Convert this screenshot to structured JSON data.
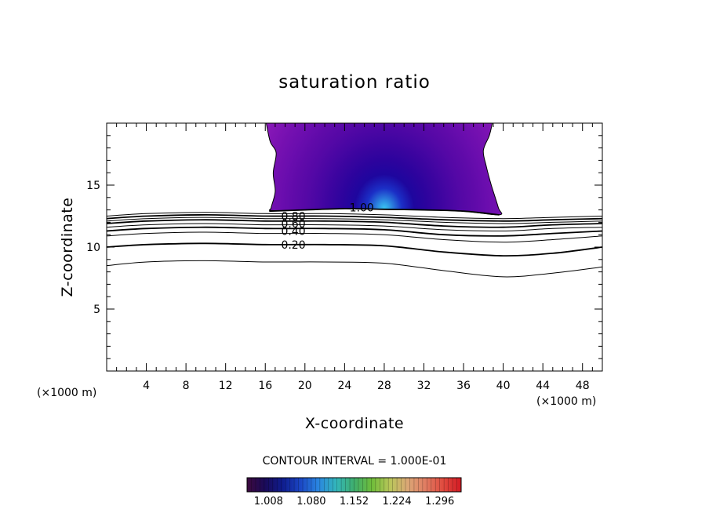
{
  "chart_data": {
    "type": "contour",
    "title": "saturation ratio",
    "xlabel": "X-coordinate",
    "ylabel": "Z-coordinate",
    "x_unit_label": "(×1000 m)",
    "y_unit_label": "(×1000 m)",
    "xlim": [
      0,
      50
    ],
    "ylim": [
      0,
      20
    ],
    "x_ticks": [
      4,
      8,
      12,
      16,
      20,
      24,
      28,
      32,
      36,
      40,
      44,
      48
    ],
    "y_ticks": [
      5,
      10,
      15
    ],
    "contour_interval_text": "CONTOUR INTERVAL = 1.000E-01",
    "contour_lines": [
      {
        "level": 0.1,
        "label": "",
        "points": [
          [
            0,
            8.5
          ],
          [
            4,
            8.8
          ],
          [
            10,
            8.9
          ],
          [
            16,
            8.8
          ],
          [
            22,
            8.8
          ],
          [
            28,
            8.7
          ],
          [
            34,
            8.1
          ],
          [
            40,
            7.6
          ],
          [
            45,
            7.9
          ],
          [
            50,
            8.4
          ]
        ]
      },
      {
        "level": 0.2,
        "label": "0.20",
        "points": [
          [
            0,
            10.0
          ],
          [
            4,
            10.2
          ],
          [
            10,
            10.3
          ],
          [
            16,
            10.2
          ],
          [
            22,
            10.2
          ],
          [
            28,
            10.1
          ],
          [
            34,
            9.6
          ],
          [
            40,
            9.3
          ],
          [
            45,
            9.5
          ],
          [
            50,
            10.0
          ]
        ]
      },
      {
        "level": 0.3,
        "label": "",
        "points": [
          [
            0,
            10.9
          ],
          [
            4,
            11.1
          ],
          [
            10,
            11.2
          ],
          [
            16,
            11.1
          ],
          [
            22,
            11.1
          ],
          [
            28,
            11.0
          ],
          [
            34,
            10.6
          ],
          [
            40,
            10.4
          ],
          [
            45,
            10.6
          ],
          [
            50,
            10.9
          ]
        ]
      },
      {
        "level": 0.4,
        "label": "0.40",
        "points": [
          [
            0,
            11.3
          ],
          [
            4,
            11.5
          ],
          [
            10,
            11.6
          ],
          [
            16,
            11.5
          ],
          [
            22,
            11.5
          ],
          [
            28,
            11.4
          ],
          [
            34,
            11.0
          ],
          [
            40,
            10.9
          ],
          [
            45,
            11.1
          ],
          [
            50,
            11.3
          ]
        ]
      },
      {
        "level": 0.5,
        "label": "",
        "points": [
          [
            0,
            11.6
          ],
          [
            4,
            11.8
          ],
          [
            10,
            11.9
          ],
          [
            16,
            11.8
          ],
          [
            22,
            11.8
          ],
          [
            28,
            11.7
          ],
          [
            34,
            11.4
          ],
          [
            40,
            11.3
          ],
          [
            45,
            11.5
          ],
          [
            50,
            11.6
          ]
        ]
      },
      {
        "level": 0.6,
        "label": "0.60",
        "points": [
          [
            0,
            11.9
          ],
          [
            4,
            12.1
          ],
          [
            10,
            12.2
          ],
          [
            16,
            12.1
          ],
          [
            22,
            12.1
          ],
          [
            28,
            12.0
          ],
          [
            34,
            11.7
          ],
          [
            40,
            11.6
          ],
          [
            45,
            11.8
          ],
          [
            50,
            11.9
          ]
        ]
      },
      {
        "level": 0.7,
        "label": "",
        "points": [
          [
            0,
            12.1
          ],
          [
            4,
            12.3
          ],
          [
            10,
            12.4
          ],
          [
            16,
            12.3
          ],
          [
            22,
            12.3
          ],
          [
            28,
            12.2
          ],
          [
            34,
            12.0
          ],
          [
            40,
            11.9
          ],
          [
            45,
            12.0
          ],
          [
            50,
            12.1
          ]
        ]
      },
      {
        "level": 0.8,
        "label": "0.80",
        "points": [
          [
            0,
            12.3
          ],
          [
            4,
            12.5
          ],
          [
            10,
            12.6
          ],
          [
            16,
            12.5
          ],
          [
            22,
            12.5
          ],
          [
            28,
            12.4
          ],
          [
            34,
            12.2
          ],
          [
            40,
            12.1
          ],
          [
            45,
            12.2
          ],
          [
            50,
            12.3
          ]
        ]
      },
      {
        "level": 0.9,
        "label": "",
        "points": [
          [
            0,
            12.5
          ],
          [
            4,
            12.7
          ],
          [
            10,
            12.8
          ],
          [
            16,
            12.7
          ],
          [
            22,
            12.7
          ],
          [
            28,
            12.6
          ],
          [
            34,
            12.4
          ],
          [
            40,
            12.3
          ],
          [
            45,
            12.4
          ],
          [
            50,
            12.5
          ]
        ]
      },
      {
        "level": 1.0,
        "label": "1.00",
        "points": [
          [
            16.4,
            12.9
          ],
          [
            20,
            13.0
          ],
          [
            24,
            13.1
          ],
          [
            28,
            13.05
          ],
          [
            32,
            13.0
          ],
          [
            36,
            12.9
          ],
          [
            39.6,
            12.6
          ]
        ]
      }
    ],
    "contour_labels": [
      {
        "text": "0.20",
        "x": 17.6,
        "y": 10.2
      },
      {
        "text": "0.40",
        "x": 17.6,
        "y": 11.3
      },
      {
        "text": "0.60",
        "x": 17.6,
        "y": 11.9
      },
      {
        "text": "0.80",
        "x": 17.6,
        "y": 12.5
      },
      {
        "text": "1.00",
        "x": 24.5,
        "y": 13.2
      }
    ],
    "filled_region": {
      "min_level": 1.0,
      "outline": [
        [
          16.1,
          20
        ],
        [
          16.5,
          18.5
        ],
        [
          17.1,
          17.6
        ],
        [
          16.8,
          16.0
        ],
        [
          17.0,
          14.5
        ],
        [
          16.6,
          13.2
        ],
        [
          16.7,
          12.95
        ],
        [
          20,
          13.0
        ],
        [
          24,
          13.1
        ],
        [
          28,
          13.05
        ],
        [
          32,
          13.0
        ],
        [
          36,
          12.9
        ],
        [
          39.6,
          12.6
        ],
        [
          39.5,
          13.2
        ],
        [
          38.8,
          15.0
        ],
        [
          38.3,
          16.5
        ],
        [
          38.0,
          17.8
        ],
        [
          38.6,
          19.0
        ],
        [
          38.9,
          20
        ]
      ],
      "shading_center": [
        28,
        13.1
      ],
      "colors": [
        "#8a19b8",
        "#7f14b4",
        "#7410b0",
        "#6a0dae",
        "#5f0aa9",
        "#5508a6",
        "#4806a3",
        "#3a049f",
        "#2c039d",
        "#1e069e",
        "#1b2fc6",
        "#3ac8f2"
      ]
    },
    "colorbar": {
      "ticks": [
        "1.008",
        "1.080",
        "1.152",
        "1.224",
        "1.296"
      ],
      "min": 0.972,
      "max": 1.332,
      "colors": [
        "#3d0a3e",
        "#1a0a58",
        "#0f1d8f",
        "#1b47c5",
        "#2a86e0",
        "#33b6ba",
        "#3fae6d",
        "#6fbd3a",
        "#b9c65a",
        "#dba776",
        "#e07c62",
        "#e04a3e",
        "#d31a24"
      ]
    }
  }
}
